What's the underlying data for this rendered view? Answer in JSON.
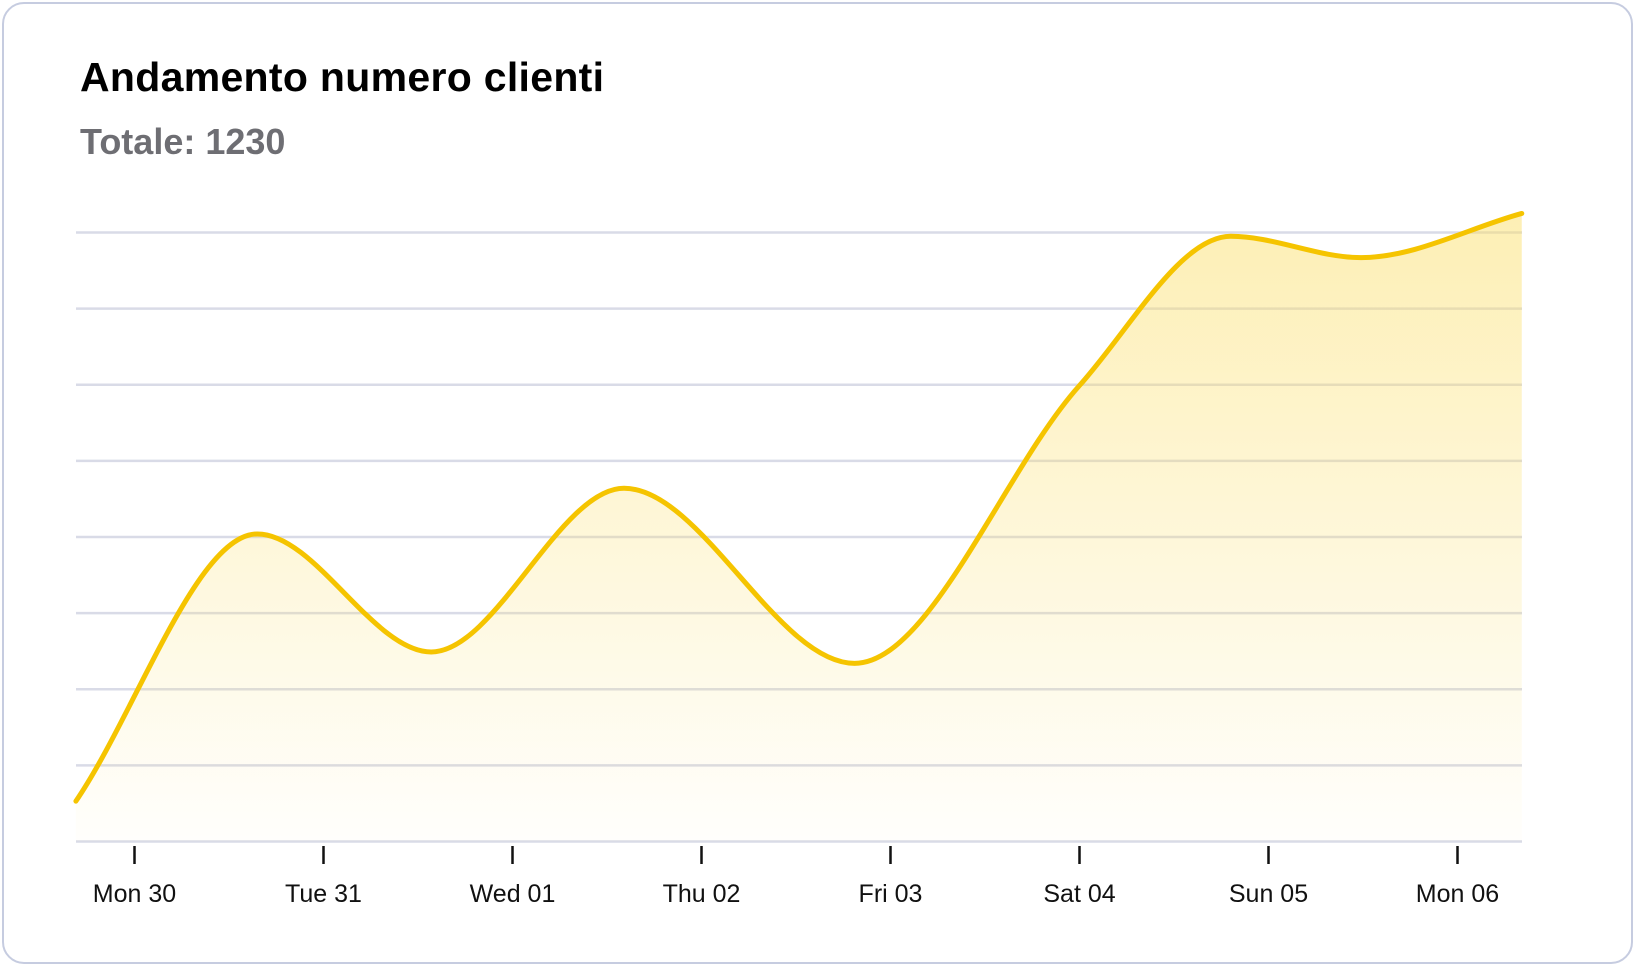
{
  "chart_data": {
    "type": "area",
    "title": "Andamento numero clienti",
    "subtitle": "Totale: 1230",
    "categories": [
      "Mon 30",
      "Tue 31",
      "Wed 01",
      "Thu 02",
      "Fri 03",
      "Sat 04",
      "Sun 05",
      "Mon 06"
    ],
    "x": [
      -0.31,
      0.65,
      1.57,
      2.59,
      3.81,
      5.0,
      5.8,
      6.49,
      7.34
    ],
    "y": [
      0.53,
      4.04,
      2.49,
      4.64,
      2.34,
      5.99,
      7.95,
      7.67,
      8.25
    ],
    "ylim": [
      0,
      8
    ],
    "xlim": [
      -0.31,
      7.34
    ],
    "y_gridlines": 9,
    "y_tick_labels": false,
    "grid": true,
    "legend": "none",
    "colors": {
      "line": "#f5c400",
      "fill": "#fbdf6a",
      "grid": "#d9dbe7",
      "border": "#c6cce0",
      "subtitle": "#6e6e73"
    }
  }
}
